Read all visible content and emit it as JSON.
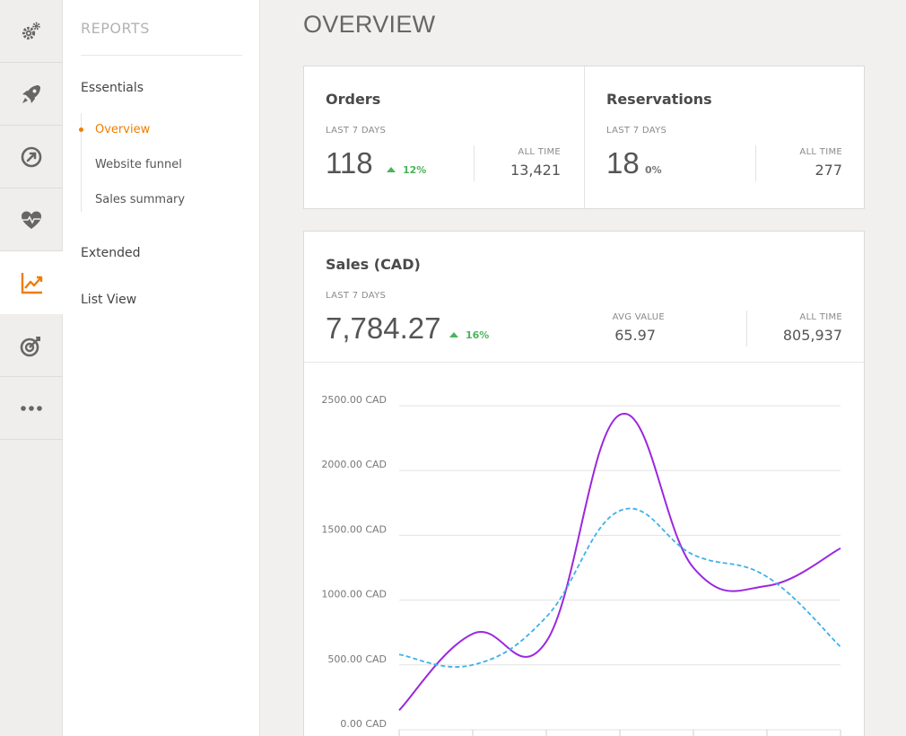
{
  "rail": {
    "items": [
      {
        "icon": "gears-icon",
        "active": false
      },
      {
        "icon": "rocket-icon",
        "active": false
      },
      {
        "icon": "gauge-icon",
        "active": false
      },
      {
        "icon": "heart-pulse-icon",
        "active": false
      },
      {
        "icon": "chart-line-icon",
        "active": true
      },
      {
        "icon": "target-icon",
        "active": false
      },
      {
        "icon": "more-icon",
        "active": false
      }
    ],
    "active_color": "#f07d00",
    "icon_color": "#666666"
  },
  "submenu": {
    "title": "REPORTS",
    "essentials": "Essentials",
    "items": [
      {
        "label": "Overview",
        "active": true
      },
      {
        "label": "Website funnel",
        "active": false
      },
      {
        "label": "Sales summary",
        "active": false
      }
    ],
    "extended": "Extended",
    "list_view": "List View"
  },
  "page": {
    "title": "OVERVIEW"
  },
  "orders": {
    "title": "Orders",
    "period_label": "LAST 7 DAYS",
    "value": "118",
    "change": "12%",
    "all_time_label": "ALL TIME",
    "all_time_value": "13,421"
  },
  "reservations": {
    "title": "Reservations",
    "period_label": "LAST 7 DAYS",
    "value": "18",
    "change": "0%",
    "all_time_label": "ALL TIME",
    "all_time_value": "277"
  },
  "sales": {
    "title": "Sales (CAD)",
    "period_label": "LAST 7 DAYS",
    "value": "7,784.27",
    "change": "16%",
    "avg_label": "AVG VALUE",
    "avg_value": "65.97",
    "all_time_label": "ALL TIME",
    "all_time_value": "805,937"
  },
  "chart_data": {
    "type": "line",
    "y_tick_labels": [
      "2500.00 CAD",
      "2000.00 CAD",
      "1500.00 CAD",
      "1000.00 CAD",
      "500.00 CAD",
      "0.00 CAD"
    ],
    "ylim": [
      0,
      2500
    ],
    "grid": true,
    "x": [
      0,
      1,
      2,
      3,
      4,
      5,
      6
    ],
    "series": [
      {
        "values": [
          150,
          740,
          680,
          2430,
          1250,
          1110,
          1400
        ],
        "color": "#9b27e0",
        "style": "solid"
      },
      {
        "values": [
          580,
          500,
          870,
          1690,
          1350,
          1180,
          640
        ],
        "color": "#3fb1ea",
        "style": "dashed"
      }
    ]
  }
}
